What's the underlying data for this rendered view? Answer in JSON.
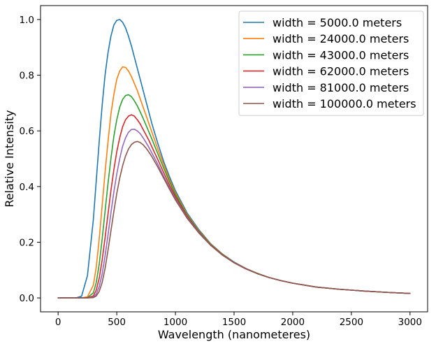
{
  "chart_data": {
    "type": "line",
    "title": "",
    "xlabel": "Wavelength (nanometeres)",
    "ylabel": "Relative Intensity",
    "xlim": [
      -150,
      3150
    ],
    "ylim": [
      -0.05,
      1.05
    ],
    "xticks": [
      0,
      500,
      1000,
      1500,
      2000,
      2500,
      3000
    ],
    "xtick_labels": [
      "0",
      "500",
      "1000",
      "1500",
      "2000",
      "2500",
      "3000"
    ],
    "yticks": [
      0.0,
      0.2,
      0.4,
      0.6,
      0.8,
      1.0
    ],
    "ytick_labels": [
      "0.0",
      "0.2",
      "0.4",
      "0.6",
      "0.8",
      "1.0"
    ],
    "grid": false,
    "legend_position": "top-right",
    "x": [
      0,
      100,
      150,
      200,
      250,
      300,
      325,
      350,
      375,
      400,
      425,
      450,
      475,
      500,
      525,
      550,
      575,
      600,
      625,
      650,
      675,
      700,
      725,
      750,
      775,
      800,
      850,
      900,
      950,
      1000,
      1100,
      1200,
      1300,
      1400,
      1500,
      1600,
      1700,
      1800,
      1900,
      2000,
      2200,
      2400,
      2600,
      2800,
      3000
    ],
    "series": [
      {
        "name": "width = 5000.0 meters",
        "color": "#1f77b4",
        "values": [
          0.0,
          0.0,
          0.0,
          0.006,
          0.08,
          0.28,
          0.42,
          0.56,
          0.69,
          0.8,
          0.88,
          0.94,
          0.98,
          0.997,
          1.0,
          0.99,
          0.97,
          0.94,
          0.905,
          0.865,
          0.825,
          0.785,
          0.745,
          0.705,
          0.665,
          0.625,
          0.555,
          0.49,
          0.435,
          0.385,
          0.305,
          0.245,
          0.195,
          0.158,
          0.129,
          0.106,
          0.088,
          0.073,
          0.062,
          0.053,
          0.039,
          0.031,
          0.025,
          0.02,
          0.016
        ]
      },
      {
        "name": "width = 24000.0 meters",
        "color": "#ff7f0e",
        "values": [
          0.0,
          0.0,
          0.0,
          0.0,
          0.004,
          0.045,
          0.11,
          0.21,
          0.33,
          0.45,
          0.56,
          0.66,
          0.73,
          0.785,
          0.815,
          0.83,
          0.828,
          0.815,
          0.795,
          0.77,
          0.745,
          0.715,
          0.685,
          0.655,
          0.625,
          0.595,
          0.535,
          0.478,
          0.425,
          0.378,
          0.3,
          0.242,
          0.194,
          0.157,
          0.128,
          0.106,
          0.088,
          0.073,
          0.062,
          0.053,
          0.039,
          0.031,
          0.025,
          0.02,
          0.016
        ]
      },
      {
        "name": "width = 43000.0 meters",
        "color": "#2ca02c",
        "values": [
          0.0,
          0.0,
          0.0,
          0.0,
          0.001,
          0.018,
          0.055,
          0.12,
          0.21,
          0.31,
          0.41,
          0.5,
          0.58,
          0.64,
          0.685,
          0.713,
          0.727,
          0.73,
          0.723,
          0.708,
          0.69,
          0.668,
          0.645,
          0.62,
          0.595,
          0.57,
          0.518,
          0.466,
          0.417,
          0.372,
          0.297,
          0.24,
          0.193,
          0.156,
          0.128,
          0.105,
          0.088,
          0.073,
          0.062,
          0.053,
          0.039,
          0.031,
          0.025,
          0.02,
          0.016
        ]
      },
      {
        "name": "width = 62000.0 meters",
        "color": "#d62728",
        "values": [
          0.0,
          0.0,
          0.0,
          0.0,
          0.0,
          0.007,
          0.028,
          0.07,
          0.135,
          0.215,
          0.3,
          0.385,
          0.46,
          0.525,
          0.575,
          0.615,
          0.64,
          0.653,
          0.658,
          0.653,
          0.64,
          0.625,
          0.605,
          0.585,
          0.565,
          0.542,
          0.497,
          0.45,
          0.405,
          0.364,
          0.293,
          0.237,
          0.191,
          0.155,
          0.127,
          0.105,
          0.087,
          0.073,
          0.062,
          0.053,
          0.039,
          0.031,
          0.025,
          0.02,
          0.016
        ]
      },
      {
        "name": "width = 81000.0 meters",
        "color": "#9467bd",
        "values": [
          0.0,
          0.0,
          0.0,
          0.0,
          0.0,
          0.003,
          0.014,
          0.04,
          0.085,
          0.15,
          0.225,
          0.305,
          0.38,
          0.445,
          0.5,
          0.545,
          0.575,
          0.595,
          0.605,
          0.606,
          0.6,
          0.59,
          0.575,
          0.558,
          0.54,
          0.52,
          0.48,
          0.437,
          0.396,
          0.357,
          0.289,
          0.235,
          0.19,
          0.154,
          0.127,
          0.105,
          0.087,
          0.073,
          0.062,
          0.053,
          0.039,
          0.031,
          0.025,
          0.02,
          0.016
        ]
      },
      {
        "name": "width = 100000.0 meters",
        "color": "#8c564b",
        "values": [
          0.0,
          0.0,
          0.0,
          0.0,
          0.0,
          0.001,
          0.007,
          0.023,
          0.055,
          0.105,
          0.17,
          0.24,
          0.31,
          0.375,
          0.43,
          0.475,
          0.51,
          0.535,
          0.551,
          0.559,
          0.562,
          0.558,
          0.55,
          0.538,
          0.523,
          0.507,
          0.47,
          0.43,
          0.39,
          0.352,
          0.286,
          0.233,
          0.189,
          0.154,
          0.126,
          0.104,
          0.087,
          0.073,
          0.062,
          0.053,
          0.039,
          0.031,
          0.025,
          0.02,
          0.016
        ]
      }
    ]
  }
}
